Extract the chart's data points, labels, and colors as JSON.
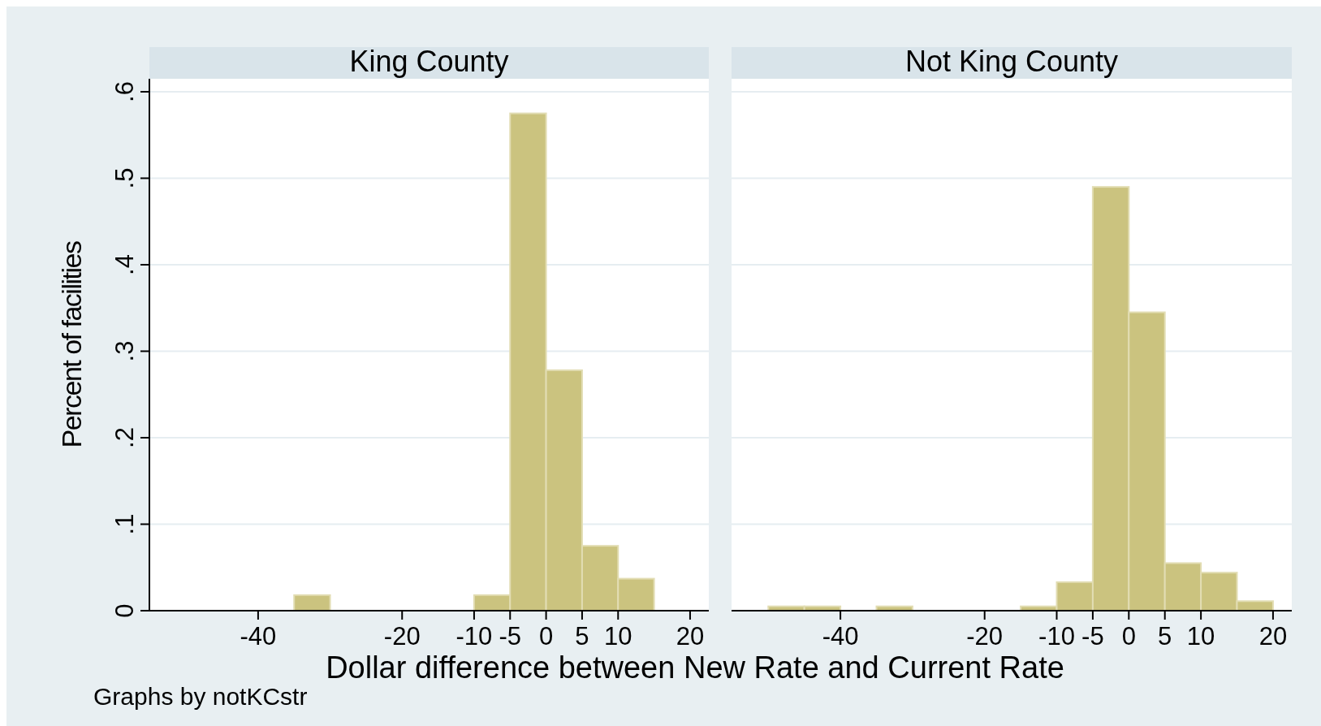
{
  "chart_data": [
    {
      "type": "histogram",
      "title": "King County",
      "ylabel": "Percent of facilities",
      "xlabel": "Dollar difference between New Rate and Current Rate",
      "annotations": [
        "Graphs by notKCstr"
      ],
      "bins": [
        -35,
        -30,
        -25,
        -20,
        -15,
        -10,
        -5,
        0,
        5,
        10,
        15
      ],
      "values": [
        0.018,
        0,
        0,
        0,
        0,
        0.018,
        0.575,
        0.278,
        0.075,
        0.037
      ],
      "color": "#cbc37f",
      "xlim": [
        -55.1,
        22.6
      ],
      "ylim": [
        0,
        0.615
      ],
      "xticks": [
        -40,
        -20,
        -10,
        -5,
        0,
        5,
        10,
        20
      ],
      "yticks": [
        {
          "value": 0,
          "label": "0"
        },
        {
          "value": 0.1,
          "label": ".1"
        },
        {
          "value": 0.2,
          "label": ".2"
        },
        {
          "value": 0.3,
          "label": ".3"
        },
        {
          "value": 0.4,
          "label": ".4"
        },
        {
          "value": 0.5,
          "label": ".5"
        },
        {
          "value": 0.6,
          "label": ".6"
        }
      ],
      "grid": "y"
    },
    {
      "type": "histogram",
      "title": "Not King County",
      "bins": [
        -50,
        -45,
        -40,
        -35,
        -30,
        -25,
        -20,
        -15,
        -10,
        -5,
        0,
        5,
        10,
        15,
        20
      ],
      "values": [
        0.005,
        0.005,
        0,
        0.005,
        0,
        0,
        0,
        0.005,
        0.033,
        0.49,
        0.345,
        0.055,
        0.044,
        0.011
      ],
      "color": "#cbc37f",
      "xlim": [
        -55.1,
        22.6
      ],
      "ylim": [
        0,
        0.615
      ],
      "xticks": [
        -40,
        -20,
        -10,
        -5,
        0,
        5,
        10,
        20
      ],
      "yticks": [
        {
          "value": 0,
          "label": null
        },
        {
          "value": 0.1,
          "label": null
        },
        {
          "value": 0.2,
          "label": null
        },
        {
          "value": 0.3,
          "label": null
        },
        {
          "value": 0.4,
          "label": null
        },
        {
          "value": 0.5,
          "label": null
        },
        {
          "value": 0.6,
          "label": null
        }
      ],
      "grid": "y",
      "tick_labels": "x"
    }
  ]
}
